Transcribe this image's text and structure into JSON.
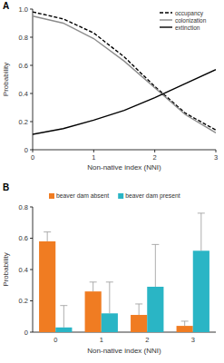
{
  "chart_data": [
    {
      "type": "line",
      "title": "A",
      "x": [
        0,
        0.5,
        1,
        1.5,
        2,
        2.5,
        3
      ],
      "xlim": [
        0,
        3
      ],
      "xticks": [
        0,
        1,
        2,
        3
      ],
      "ylim": [
        0,
        1
      ],
      "yticks": [
        0,
        0.2,
        0.4,
        0.6,
        0.8,
        {
          "value": 1,
          "label": "1.0"
        }
      ],
      "x_label": "Non-native index (NNI)",
      "y_label": "Probability",
      "legend": "top-right",
      "series": [
        {
          "name": "occupancy",
          "color": "#000000",
          "line_style": "dashed",
          "values": [
            0.98,
            0.93,
            0.83,
            0.66,
            0.45,
            0.26,
            0.14
          ]
        },
        {
          "name": "colonization",
          "color": "#8c8c8c",
          "line_style": "solid",
          "values": [
            0.95,
            0.9,
            0.79,
            0.63,
            0.44,
            0.25,
            0.12
          ]
        },
        {
          "name": "extinction",
          "color": "#000000",
          "line_style": "solid",
          "values": [
            0.11,
            0.15,
            0.21,
            0.28,
            0.37,
            0.47,
            0.57
          ]
        }
      ]
    },
    {
      "type": "bar",
      "title": "B",
      "categories": [
        "0",
        "1",
        "2",
        "3"
      ],
      "ylim": [
        0,
        0.8
      ],
      "yticks": [
        0,
        0.2,
        0.4,
        0.6,
        0.8
      ],
      "x_label": "Non-native index (NNI)",
      "y_label": "Probability",
      "legend": "top",
      "series": [
        {
          "name": "beaver dam absent",
          "color": "#f07c22",
          "values": [
            0.58,
            0.26,
            0.11,
            0.04
          ],
          "errors": [
            0.06,
            0.06,
            0.07,
            0.03
          ]
        },
        {
          "name": "beaver dam present",
          "color": "#2ab5c5",
          "values": [
            0.03,
            0.12,
            0.29,
            0.52
          ],
          "errors": [
            0.14,
            0.2,
            0.27,
            0.24
          ]
        }
      ]
    }
  ]
}
